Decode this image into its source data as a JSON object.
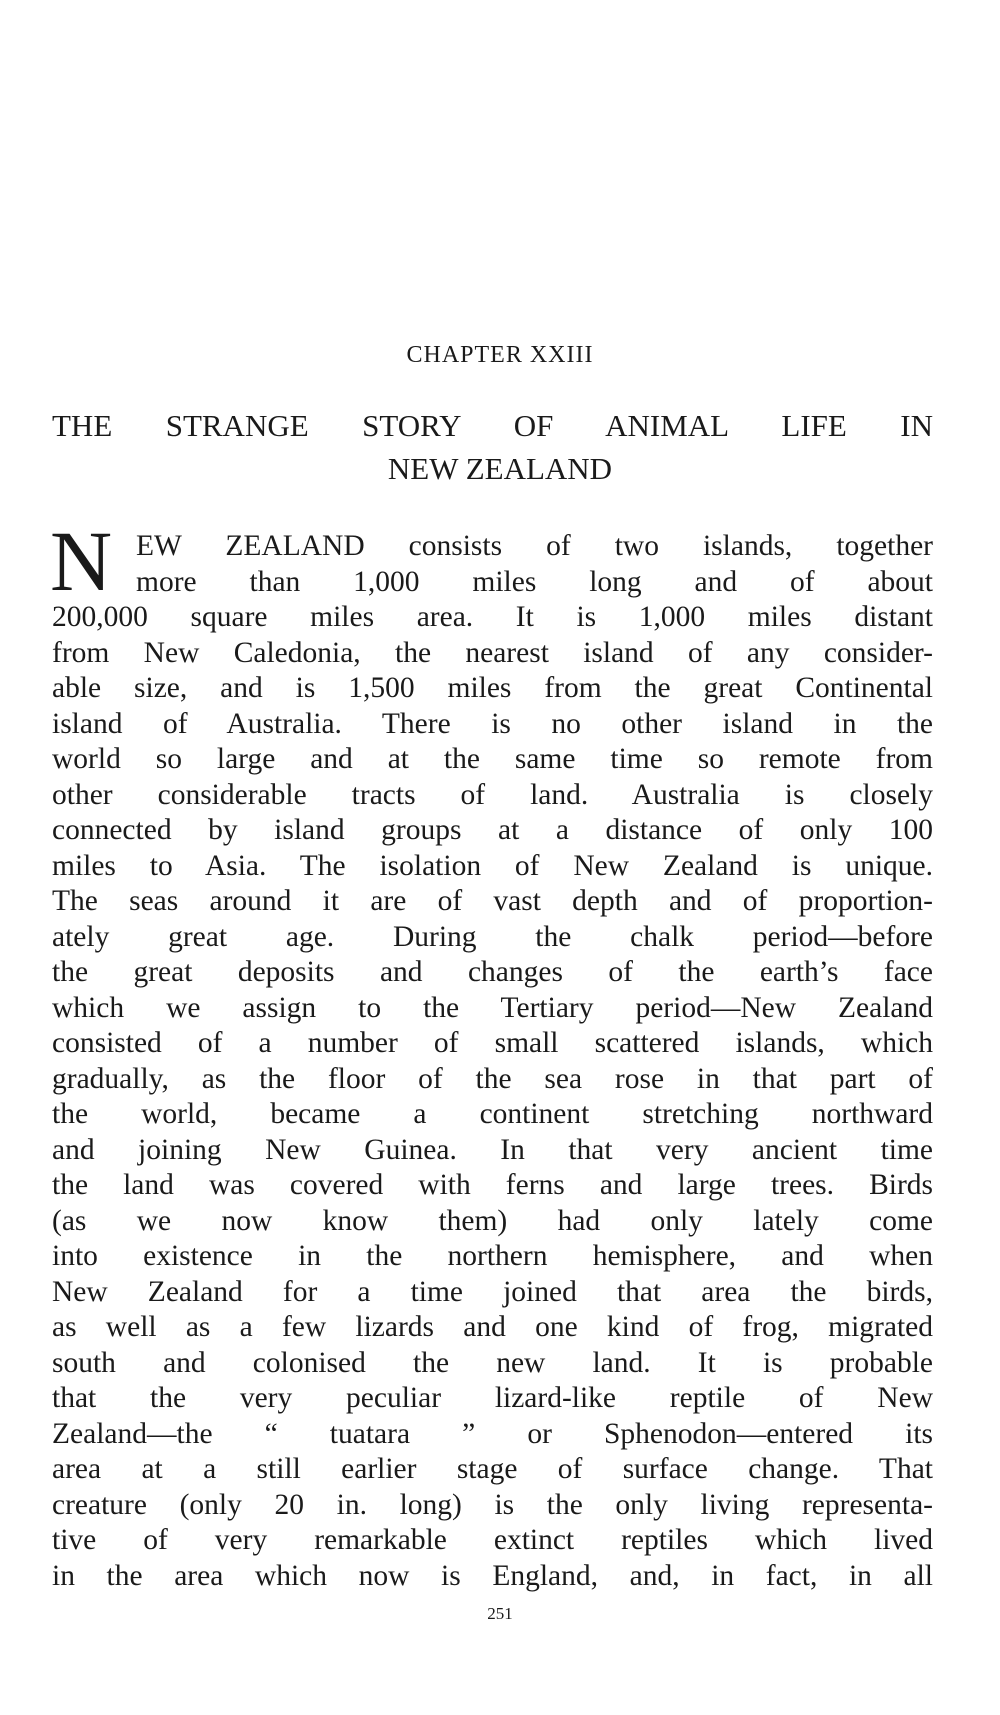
{
  "chapter": "CHAPTER XXIII",
  "title": [
    "THE STRANGE STORY OF ANIMAL LIFE IN",
    "NEW ZEALAND"
  ],
  "drop_cap": "N",
  "lines": [
    "EW ZEALAND consists of two islands, together",
    "more than 1,000 miles long and of about",
    "200,000 square miles area. It is 1,000 miles distant",
    "from New Caledonia, the nearest island of any consider-",
    "able size, and is 1,500 miles from the great Continental",
    "island of Australia. There is no other island in the",
    "world so large and at the same time so remote from",
    "other considerable tracts of land. Australia is closely",
    "connected by island groups at a distance of only 100",
    "miles to Asia. The isolation of New Zealand is unique.",
    "The seas around it are of vast depth and of proportion-",
    "ately great age. During the chalk period—before",
    "the great deposits and changes of the earth’s face",
    "which we assign to the Tertiary period—New Zealand",
    "consisted of a number of small scattered islands, which",
    "gradually, as the floor of the sea rose in that part of",
    "the world, became a continent stretching northward",
    "and joining New Guinea. In that very ancient time",
    "the land was covered with ferns and large trees. Birds",
    "(as we now know them) had only lately come",
    "into existence in the northern hemisphere, and when",
    "New Zealand for a time joined that area the birds,",
    "as well as a few lizards and one kind of frog, migrated",
    "south and colonised the new land. It is probable",
    "that the very peculiar lizard-like reptile of New",
    "Zealand—the “ tuatara ” or Sphenodon—entered its",
    "area at a still earlier stage of surface change. That",
    "creature (only 20 in. long) is the only living representa-",
    "tive of very remarkable extinct reptiles which lived",
    "in the area which now is England, and, in fact, in all"
  ],
  "page_number": "251"
}
